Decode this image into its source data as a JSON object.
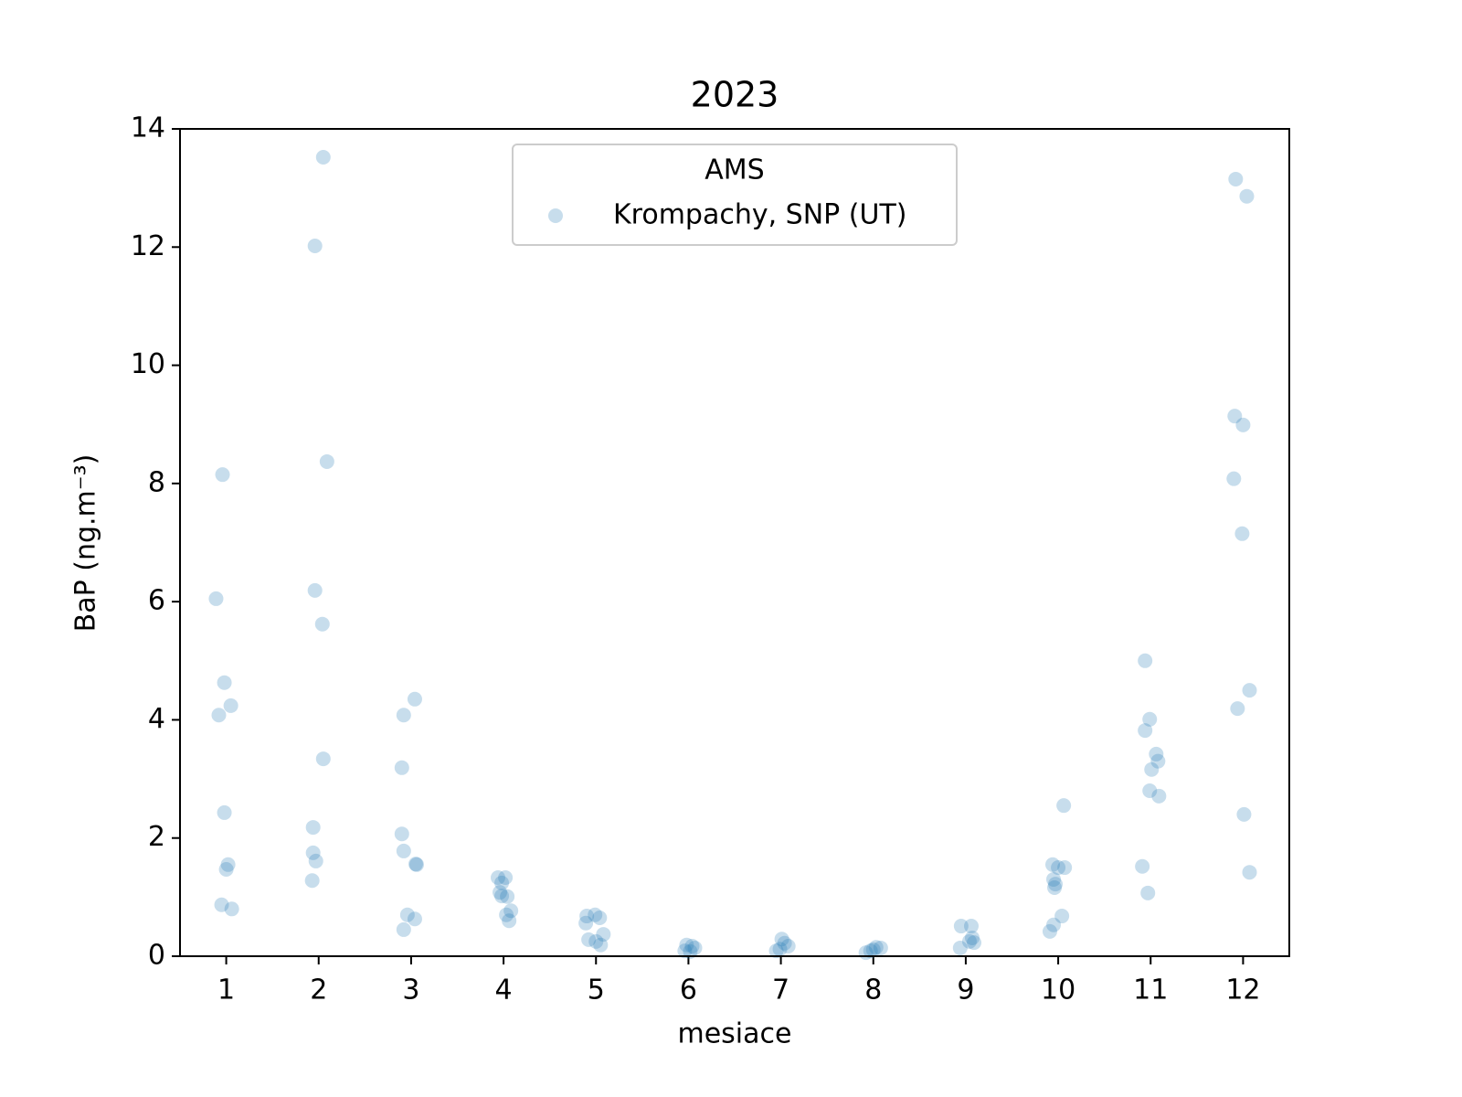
{
  "chart_data": {
    "type": "scatter",
    "title": "2023",
    "xlabel": "mesiace",
    "ylabel": "BaP  (ng.m⁻³)",
    "legend_title": "AMS",
    "legend_loc": "upper center",
    "alpha": 0.25,
    "xlim": [
      0.5,
      12.5
    ],
    "xticks": [
      1,
      2,
      3,
      4,
      5,
      6,
      7,
      8,
      9,
      10,
      11,
      12
    ],
    "ylim": [
      0,
      14
    ],
    "yticks": [
      0,
      2,
      4,
      6,
      8,
      10,
      12,
      14
    ],
    "series": [
      {
        "name": "Krompachy, SNP (UT)",
        "color": "#1f77b4",
        "x": [
          0.96,
          0.89,
          0.98,
          1.05,
          0.92,
          0.98,
          1.02,
          1.0,
          0.95,
          1.06,
          2.05,
          1.96,
          2.09,
          1.96,
          2.04,
          2.05,
          1.94,
          1.94,
          1.97,
          1.93,
          3.04,
          2.92,
          2.9,
          2.9,
          2.92,
          3.05,
          3.06,
          2.96,
          3.04,
          2.92,
          3.94,
          4.02,
          3.98,
          3.96,
          4.04,
          3.98,
          4.08,
          4.03,
          4.06,
          4.9,
          4.99,
          5.04,
          4.89,
          5.08,
          4.92,
          5.0,
          5.05,
          5.98,
          6.07,
          6.02,
          5.96,
          6.04,
          7.01,
          6.95,
          7.08,
          7.04,
          6.99,
          8.03,
          8.08,
          7.92,
          7.97,
          8.0,
          8.95,
          9.06,
          9.07,
          9.04,
          8.94,
          9.09,
          10.06,
          9.94,
          10.0,
          10.07,
          9.95,
          9.97,
          9.96,
          10.04,
          9.95,
          9.91,
          10.94,
          10.99,
          10.94,
          11.06,
          11.08,
          11.01,
          10.99,
          11.09,
          10.91,
          10.97,
          11.92,
          12.04,
          11.91,
          12.0,
          11.9,
          11.99,
          12.07,
          11.94,
          12.01,
          12.07
        ],
        "values": [
          8.15,
          6.05,
          4.63,
          4.24,
          4.08,
          2.43,
          1.55,
          1.47,
          0.87,
          0.8,
          13.52,
          12.02,
          8.37,
          6.19,
          5.62,
          3.34,
          2.18,
          1.75,
          1.61,
          1.28,
          4.35,
          4.08,
          3.19,
          2.07,
          1.78,
          1.56,
          1.55,
          0.7,
          0.63,
          0.45,
          1.33,
          1.33,
          1.24,
          1.08,
          1.01,
          1.02,
          0.77,
          0.7,
          0.6,
          0.68,
          0.7,
          0.65,
          0.56,
          0.37,
          0.28,
          0.25,
          0.19,
          0.19,
          0.14,
          0.08,
          0.09,
          0.17,
          0.29,
          0.09,
          0.17,
          0.22,
          0.12,
          0.15,
          0.14,
          0.06,
          0.09,
          0.11,
          0.51,
          0.51,
          0.31,
          0.25,
          0.14,
          0.23,
          2.55,
          1.55,
          1.5,
          1.5,
          1.3,
          1.22,
          1.16,
          0.68,
          0.53,
          0.42,
          5.0,
          4.01,
          3.82,
          3.42,
          3.3,
          3.16,
          2.8,
          2.71,
          1.52,
          1.07,
          13.15,
          12.86,
          9.14,
          8.99,
          8.08,
          7.15,
          4.5,
          4.19,
          2.4,
          1.42
        ]
      }
    ]
  }
}
